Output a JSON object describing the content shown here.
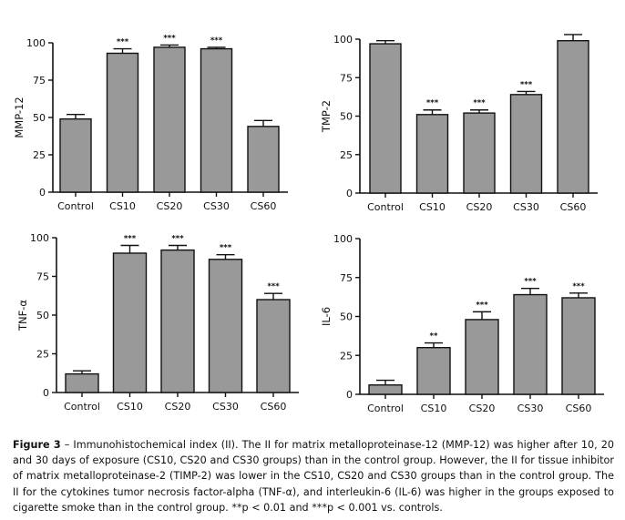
{
  "chart_data": [
    {
      "type": "bar",
      "ylabel": "MMP-12",
      "ylim": [
        0,
        100
      ],
      "yticks": [
        0,
        25,
        50,
        75,
        100
      ],
      "categories": [
        "Control",
        "CS10",
        "CS20",
        "CS30",
        "CS60"
      ],
      "values": [
        49,
        93,
        97,
        96,
        44
      ],
      "errors": [
        3,
        3,
        1.5,
        1,
        4
      ],
      "significance": [
        "",
        "***",
        "***",
        "***",
        ""
      ]
    },
    {
      "type": "bar",
      "ylabel": "TMP-2",
      "ylim": [
        0,
        100
      ],
      "yticks": [
        0,
        25,
        50,
        75,
        100
      ],
      "categories": [
        "Control",
        "CS10",
        "CS20",
        "CS30",
        "CS60"
      ],
      "values": [
        97,
        51,
        52,
        64,
        99
      ],
      "errors": [
        2,
        3,
        2,
        2,
        4
      ],
      "significance": [
        "",
        "***",
        "***",
        "***",
        ""
      ]
    },
    {
      "type": "bar",
      "ylabel": "TNF-α",
      "ylim": [
        0,
        100
      ],
      "yticks": [
        0,
        25,
        50,
        75,
        100
      ],
      "categories": [
        "Control",
        "CS10",
        "CS20",
        "CS30",
        "CS60"
      ],
      "values": [
        12,
        90,
        92,
        86,
        60
      ],
      "errors": [
        2,
        5,
        3,
        3,
        4
      ],
      "significance": [
        "",
        "***",
        "***",
        "***",
        "***"
      ]
    },
    {
      "type": "bar",
      "ylabel": "IL-6",
      "ylim": [
        0,
        100
      ],
      "yticks": [
        0,
        25,
        50,
        75,
        100
      ],
      "categories": [
        "Control",
        "CS10",
        "CS20",
        "CS30",
        "CS60"
      ],
      "values": [
        6,
        30,
        48,
        64,
        62
      ],
      "errors": [
        3,
        3,
        5,
        4,
        3
      ],
      "significance": [
        "",
        "**",
        "***",
        "***",
        "***"
      ]
    }
  ],
  "caption": {
    "label": "Figure 3",
    "text": " – Immunohistochemical index (II). The II for matrix metalloproteinase-12 (MMP-12) was higher after 10, 20 and 30 days of exposure (CS10, CS20 and CS30 groups) than in the control group. However, the II for tissue inhibitor of matrix metalloproteinase-2 (TIMP-2) was lower in the CS10, CS20 and CS30 groups than in the control group. The II for the cytokines tumor necrosis factor-alpha (TNF-α), and interleukin-6 (IL-6) was higher in the groups exposed to cigarette smoke than in the control group. **p < 0.01 and ***p < 0.001 vs. controls."
  },
  "colors": {
    "bar_fill": "#999999",
    "bar_stroke": "#111111",
    "axis": "#111111"
  }
}
